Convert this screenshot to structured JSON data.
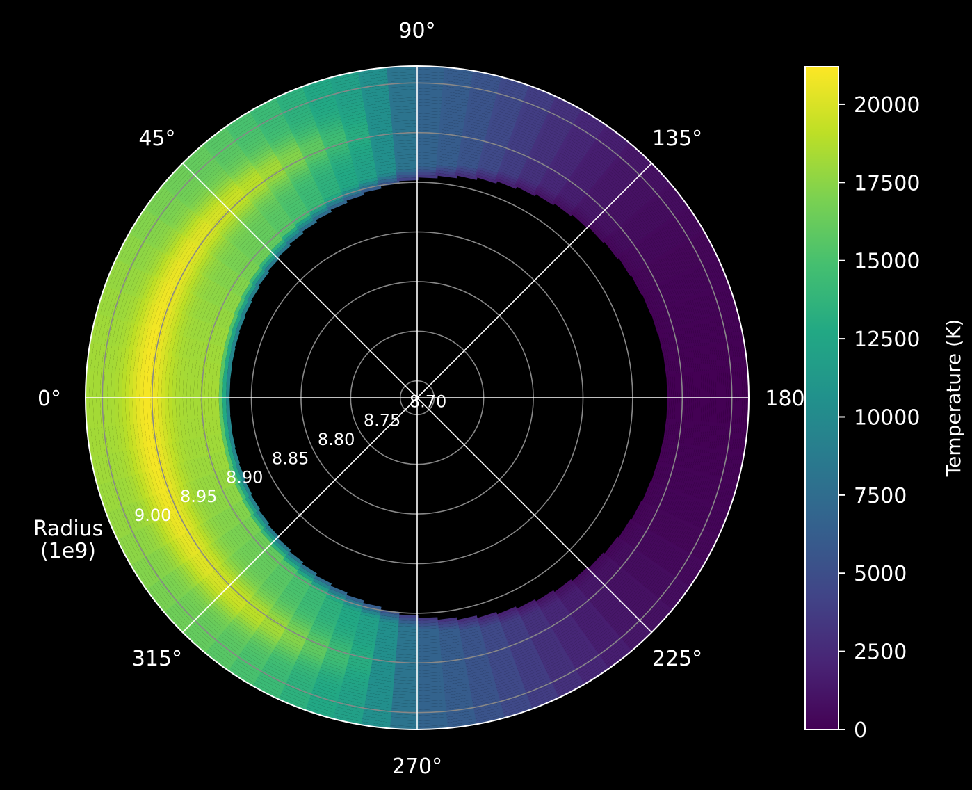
{
  "chart_data": {
    "type": "heatmap",
    "projection": "polar",
    "angle_labels": [
      "0°",
      "45°",
      "90°",
      "135°",
      "180",
      "225°",
      "270°",
      "315°"
    ],
    "angle_ticks_deg": [
      0,
      45,
      90,
      135,
      180,
      225,
      270,
      315
    ],
    "theta_direction": "clockwise",
    "theta_zero_location": "left",
    "radial_axis": {
      "label": "Radius\n(1e9)",
      "label_lines": [
        "Radius",
        "(1e9)"
      ],
      "tick_labels": [
        "8.70",
        "8.75",
        "8.80",
        "8.85",
        "8.90",
        "8.95",
        "9.00"
      ],
      "ticks": [
        8.7,
        8.75,
        8.8,
        8.85,
        8.9,
        8.95,
        9.0
      ],
      "rlim": [
        8.683,
        9.017
      ],
      "data_range": [
        8.87,
        9.017
      ]
    },
    "colorbar": {
      "label": "Temperature (K)",
      "tick_labels": [
        "0",
        "2500",
        "5000",
        "7500",
        "10000",
        "12500",
        "15000",
        "17500",
        "20000"
      ],
      "ticks": [
        0,
        2500,
        5000,
        7500,
        10000,
        12500,
        15000,
        17500,
        20000
      ],
      "range": [
        0,
        21200
      ],
      "colormap": "viridis"
    },
    "grid": true,
    "background_color": "#000000",
    "grid_color": "#888888",
    "spoke_color": "#ffffff",
    "temperature_field": {
      "description_of_axes": "rows are angle in degrees, columns are radius in 1e9 units",
      "theta_step_deg": 5,
      "theta_profile_deg": [
        0,
        10,
        20,
        30,
        40,
        50,
        60,
        70,
        80,
        90,
        100,
        110,
        120,
        130,
        140,
        150,
        160,
        170,
        180
      ],
      "theta_profile_k": [
        18300,
        18200,
        17900,
        17400,
        16700,
        15900,
        14700,
        13000,
        11600,
        7000,
        5800,
        4200,
        2600,
        1500,
        800,
        400,
        200,
        100,
        0
      ],
      "front_profile_peak_k": 21000,
      "front_radius": 8.955
    }
  }
}
